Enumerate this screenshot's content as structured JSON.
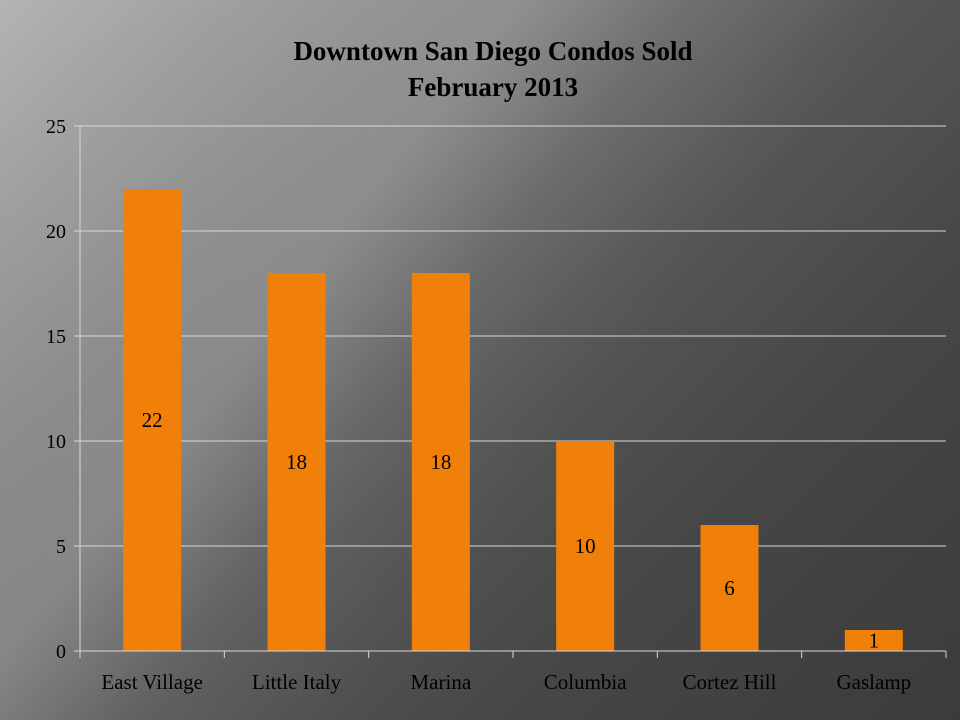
{
  "chart_data": {
    "type": "bar",
    "title": "Downtown San Diego Condos Sold",
    "subtitle": "February 2013",
    "categories": [
      "East Village",
      "Little Italy",
      "Marina",
      "Columbia",
      "Cortez Hill",
      "Gaslamp"
    ],
    "values": [
      22,
      18,
      18,
      10,
      6,
      1
    ],
    "ylim": [
      0,
      25
    ],
    "yticks": [
      0,
      5,
      10,
      15,
      20,
      25
    ],
    "grid": true,
    "legend": "none",
    "data_labels": true,
    "bar_color": "#F0800A",
    "grid_color": "#D8D8D8"
  }
}
